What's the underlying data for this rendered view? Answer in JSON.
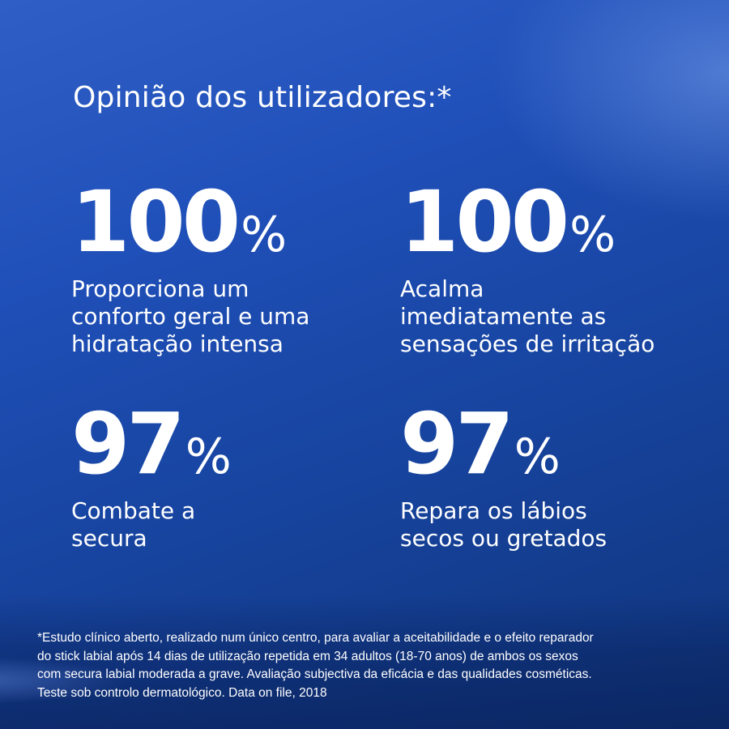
{
  "heading": "Opinião dos utilizadores:*",
  "stats": [
    {
      "number": "100",
      "percent": "%",
      "label_lines": [
        "Proporciona um",
        "conforto geral e uma",
        "hidratação intensa"
      ]
    },
    {
      "number": "100",
      "percent": "%",
      "label_lines": [
        "Acalma",
        "imediatamente as",
        "sensações de irritação"
      ]
    },
    {
      "number": "97",
      "percent": "%",
      "label_lines": [
        "Combate a",
        "secura"
      ]
    },
    {
      "number": "97",
      "percent": "%",
      "label_lines": [
        "Repara os lábios",
        "secos ou gretados"
      ]
    }
  ],
  "footnote_lines": [
    "*Estudo clínico aberto, realizado num único centro, para avaliar a aceitabilidade e o efeito reparador",
    "do stick labial após 14 dias de utilização repetida em 34 adultos (18-70 anos) de ambos os sexos",
    "com secura labial moderada a grave. Avaliação subjectiva da eficácia e das qualidades cosméticas.",
    "Teste sob controlo dermatológico. Data on file, 2018"
  ],
  "colors": {
    "background": "#1f4fb8",
    "text": "#ffffff"
  }
}
